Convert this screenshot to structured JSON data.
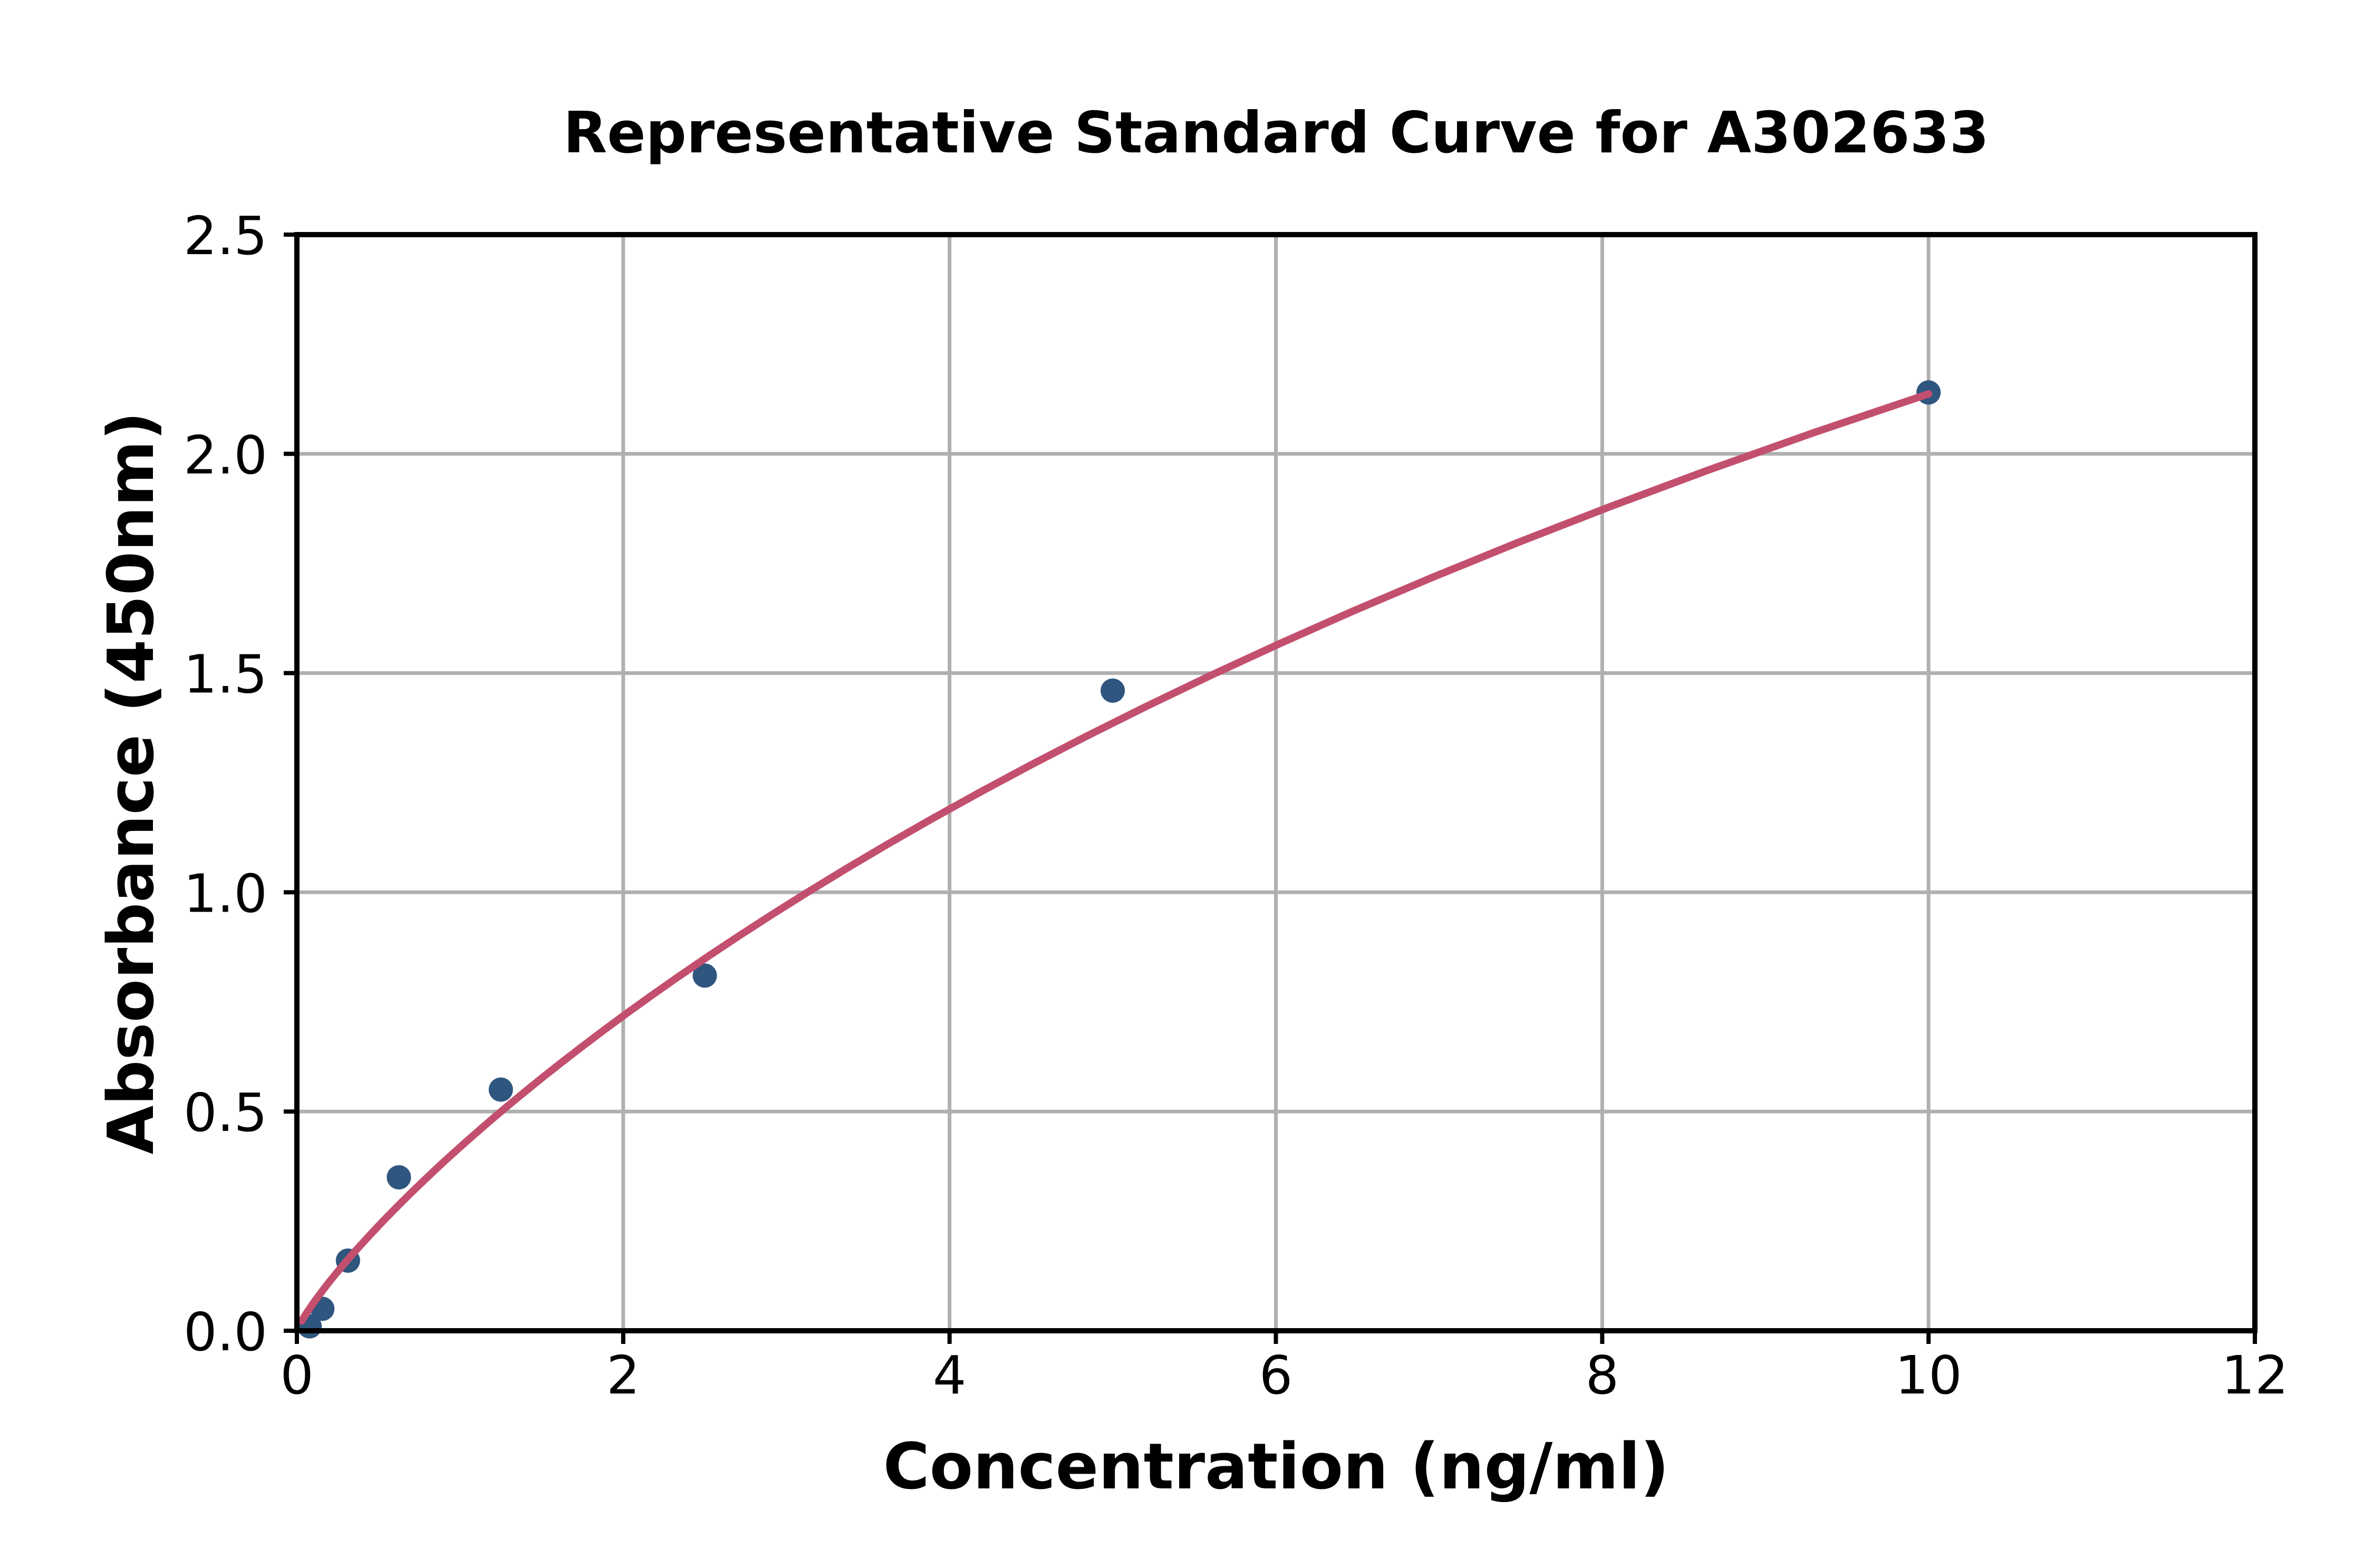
{
  "chart_data": {
    "type": "scatter",
    "title": "Representative Standard Curve for A302633",
    "xlabel": "Concentration (ng/ml)",
    "ylabel": "Absorbance (450nm)",
    "xlim": [
      0,
      12
    ],
    "ylim": [
      0,
      2.5
    ],
    "xticks": [
      0,
      2,
      4,
      6,
      8,
      10,
      12
    ],
    "yticks": [
      0.0,
      0.5,
      1.0,
      1.5,
      2.0,
      2.5
    ],
    "grid": true,
    "legend": "none",
    "points": {
      "x": [
        0.078,
        0.156,
        0.313,
        0.625,
        1.25,
        2.5,
        5,
        10
      ],
      "y": [
        0.01,
        0.05,
        0.16,
        0.35,
        0.55,
        0.81,
        1.46,
        2.14
      ]
    },
    "fit_curve": {
      "model": "4PL",
      "a": 0,
      "b": 0.85,
      "c": 23.6,
      "d": 6.57,
      "x_start": 0.03,
      "x_end": 10
    },
    "colors": {
      "marker": "#2e567e",
      "line": "#c34f6e",
      "grid": "#b0b0b0",
      "axis": "#000000",
      "background": "#ffffff"
    }
  }
}
